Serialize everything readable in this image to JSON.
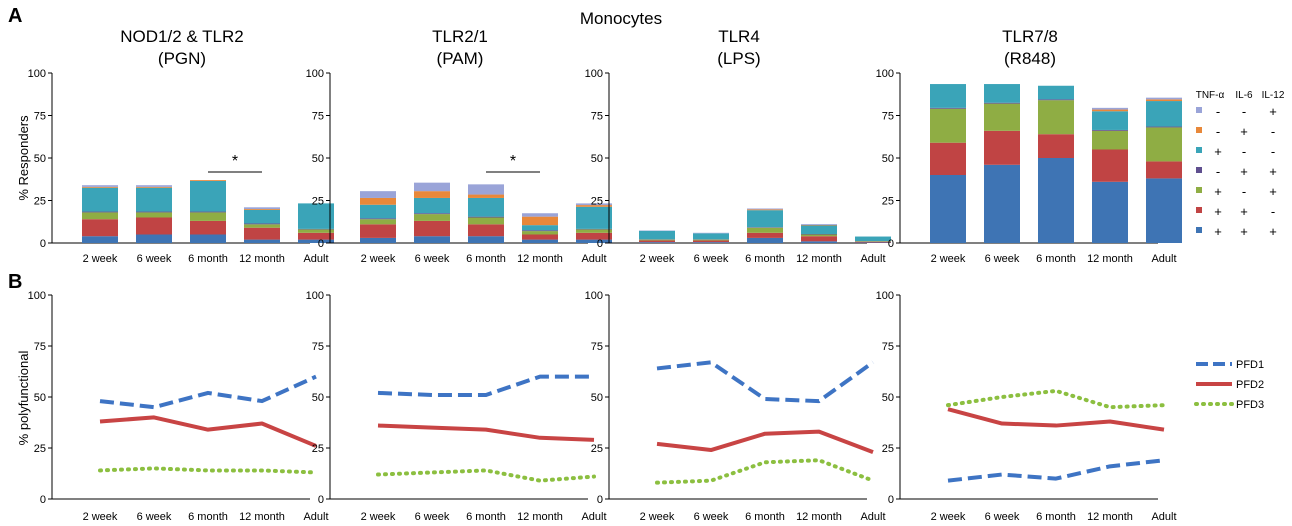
{
  "figure": {
    "title": "Monocytes",
    "panel_labels": {
      "a": "A",
      "b": "B"
    },
    "axis_ticks": [
      "0",
      "25",
      "50",
      "75",
      "100"
    ],
    "top_ylabel": "% Responders",
    "bottom_ylabel": "% polyfunctional",
    "legend_header": {
      "tnf": "TNF-α",
      "il6": "IL-6",
      "il12": "IL-12"
    },
    "significance_marker": "*"
  },
  "chart_data": [
    {
      "type": "bar",
      "stacked": true,
      "title_line1": "NOD1/2 & TLR2",
      "title_line2": "(PGN)",
      "ylabel": "% Responders",
      "ylim": [
        0,
        100
      ],
      "categories": [
        "2 week",
        "6 week",
        "6 month",
        "12 month",
        "Adult"
      ],
      "series": [
        {
          "key": "ppp",
          "values": [
            4,
            5,
            5,
            2,
            2
          ]
        },
        {
          "key": "ppm",
          "values": [
            10,
            10,
            8,
            7,
            4
          ]
        },
        {
          "key": "pmp",
          "values": [
            4,
            3,
            5,
            2,
            2
          ]
        },
        {
          "key": "mpp",
          "values": [
            0.5,
            0.5,
            0.5,
            0.5,
            0.3
          ]
        },
        {
          "key": "pmm",
          "values": [
            14,
            14,
            18,
            8,
            15
          ]
        },
        {
          "key": "mpm",
          "values": [
            0.5,
            0.5,
            0.5,
            0.5,
            0
          ]
        },
        {
          "key": "mmp",
          "values": [
            1,
            1,
            0,
            1,
            0
          ]
        }
      ],
      "significance": {
        "from": 2,
        "to": 3
      }
    },
    {
      "type": "bar",
      "stacked": true,
      "title_line1": "TLR2/1",
      "title_line2": "(PAM)",
      "ylim": [
        0,
        100
      ],
      "categories": [
        "2 week",
        "6 week",
        "6 month",
        "12 month",
        "Adult"
      ],
      "series": [
        {
          "key": "ppp",
          "values": [
            3,
            4,
            4,
            2,
            2
          ]
        },
        {
          "key": "ppm",
          "values": [
            8,
            9,
            7,
            3,
            4
          ]
        },
        {
          "key": "pmp",
          "values": [
            3,
            4,
            4,
            2,
            2
          ]
        },
        {
          "key": "mpp",
          "values": [
            0.5,
            0.5,
            0.5,
            0.5,
            0.3
          ]
        },
        {
          "key": "pmm",
          "values": [
            8,
            9,
            11,
            3,
            13
          ]
        },
        {
          "key": "mpm",
          "values": [
            4,
            4,
            2,
            5,
            1
          ]
        },
        {
          "key": "mmp",
          "values": [
            4,
            5,
            6,
            2,
            1
          ]
        }
      ],
      "significance": {
        "from": 2,
        "to": 3
      }
    },
    {
      "type": "bar",
      "stacked": true,
      "title_line1": "TLR4",
      "title_line2": "(LPS)",
      "ylim": [
        0,
        100
      ],
      "categories": [
        "2 week",
        "6 week",
        "6 month",
        "12 month",
        "Adult"
      ],
      "series": [
        {
          "key": "ppp",
          "values": [
            0.5,
            0.5,
            3,
            1,
            0.3
          ]
        },
        {
          "key": "ppm",
          "values": [
            1,
            1,
            3,
            3,
            0.5
          ]
        },
        {
          "key": "pmp",
          "values": [
            0.5,
            0.5,
            3,
            1,
            0.3
          ]
        },
        {
          "key": "mpp",
          "values": [
            0.2,
            0.2,
            0.3,
            0.3,
            0
          ]
        },
        {
          "key": "pmm",
          "values": [
            5,
            3.5,
            10,
            5,
            2.7
          ]
        },
        {
          "key": "mpm",
          "values": [
            0,
            0,
            0.5,
            0.3,
            0
          ]
        },
        {
          "key": "mmp",
          "values": [
            0.2,
            0.3,
            0.5,
            0.5,
            0
          ]
        }
      ]
    },
    {
      "type": "bar",
      "stacked": true,
      "title_line1": "TLR7/8",
      "title_line2": "(R848)",
      "ylim": [
        0,
        100
      ],
      "categories": [
        "2 week",
        "6 week",
        "6 month",
        "12 month",
        "Adult"
      ],
      "series": [
        {
          "key": "ppp",
          "values": [
            40,
            46,
            50,
            36,
            38
          ]
        },
        {
          "key": "ppm",
          "values": [
            19,
            20,
            14,
            19,
            10
          ]
        },
        {
          "key": "pmp",
          "values": [
            20,
            16,
            20,
            11,
            20
          ]
        },
        {
          "key": "mpp",
          "values": [
            0.5,
            0.5,
            0.5,
            0.5,
            0.5
          ]
        },
        {
          "key": "pmm",
          "values": [
            14,
            11,
            8,
            11,
            15
          ]
        },
        {
          "key": "mpm",
          "values": [
            0,
            0,
            0,
            1,
            1
          ]
        },
        {
          "key": "mmp",
          "values": [
            0,
            0,
            0,
            1,
            1
          ]
        }
      ]
    },
    {
      "type": "line",
      "ylabel": "% polyfunctional",
      "ylim": [
        0,
        100
      ],
      "categories": [
        "2 week",
        "6 week",
        "6 month",
        "12 month",
        "Adult"
      ],
      "series": [
        {
          "name": "PFD1",
          "values": [
            48,
            45,
            52,
            48,
            60
          ]
        },
        {
          "name": "PFD2",
          "values": [
            38,
            40,
            34,
            37,
            26
          ]
        },
        {
          "name": "PFD3",
          "values": [
            14,
            15,
            14,
            14,
            13
          ]
        }
      ]
    },
    {
      "type": "line",
      "ylim": [
        0,
        100
      ],
      "categories": [
        "2 week",
        "6 week",
        "6 month",
        "12 month",
        "Adult"
      ],
      "series": [
        {
          "name": "PFD1",
          "values": [
            52,
            51,
            51,
            60,
            60
          ]
        },
        {
          "name": "PFD2",
          "values": [
            36,
            35,
            34,
            30,
            29
          ]
        },
        {
          "name": "PFD3",
          "values": [
            12,
            13,
            14,
            9,
            11
          ]
        }
      ]
    },
    {
      "type": "line",
      "ylim": [
        0,
        100
      ],
      "categories": [
        "2 week",
        "6 week",
        "6 month",
        "12 month",
        "Adult"
      ],
      "series": [
        {
          "name": "PFD1",
          "values": [
            64,
            67,
            49,
            48,
            67
          ]
        },
        {
          "name": "PFD2",
          "values": [
            27,
            24,
            32,
            33,
            23
          ]
        },
        {
          "name": "PFD3",
          "values": [
            8,
            9,
            18,
            19,
            9
          ]
        }
      ]
    },
    {
      "type": "line",
      "ylim": [
        0,
        100
      ],
      "categories": [
        "2 week",
        "6 week",
        "6 month",
        "12 month",
        "Adult"
      ],
      "series": [
        {
          "name": "PFD1",
          "values": [
            9,
            12,
            10,
            16,
            19
          ]
        },
        {
          "name": "PFD2",
          "values": [
            44,
            37,
            36,
            38,
            34
          ]
        },
        {
          "name": "PFD3",
          "values": [
            46,
            50,
            53,
            45,
            46
          ]
        }
      ]
    }
  ],
  "bar_legend": [
    {
      "key": "mmp",
      "tnf": "-",
      "il6": "-",
      "il12": "+",
      "color": "#9aa4d8"
    },
    {
      "key": "mpm",
      "tnf": "-",
      "il6": "+",
      "il12": "-",
      "color": "#e8883a"
    },
    {
      "key": "pmm",
      "tnf": "+",
      "il6": "-",
      "il12": "-",
      "color": "#3aa4b8"
    },
    {
      "key": "mpp",
      "tnf": "-",
      "il6": "+",
      "il12": "+",
      "color": "#5f4f8f"
    },
    {
      "key": "pmp",
      "tnf": "+",
      "il6": "-",
      "il12": "+",
      "color": "#8fad44"
    },
    {
      "key": "ppm",
      "tnf": "+",
      "il6": "+",
      "il12": "-",
      "color": "#c04444"
    },
    {
      "key": "ppp",
      "tnf": "+",
      "il6": "+",
      "il12": "+",
      "color": "#3e74b4"
    }
  ],
  "line_legend": [
    {
      "name": "PFD1",
      "color": "#3e74c4",
      "style": "dashed"
    },
    {
      "name": "PFD2",
      "color": "#c84444",
      "style": "solid"
    },
    {
      "name": "PFD3",
      "color": "#8cbf40",
      "style": "dotted"
    }
  ]
}
